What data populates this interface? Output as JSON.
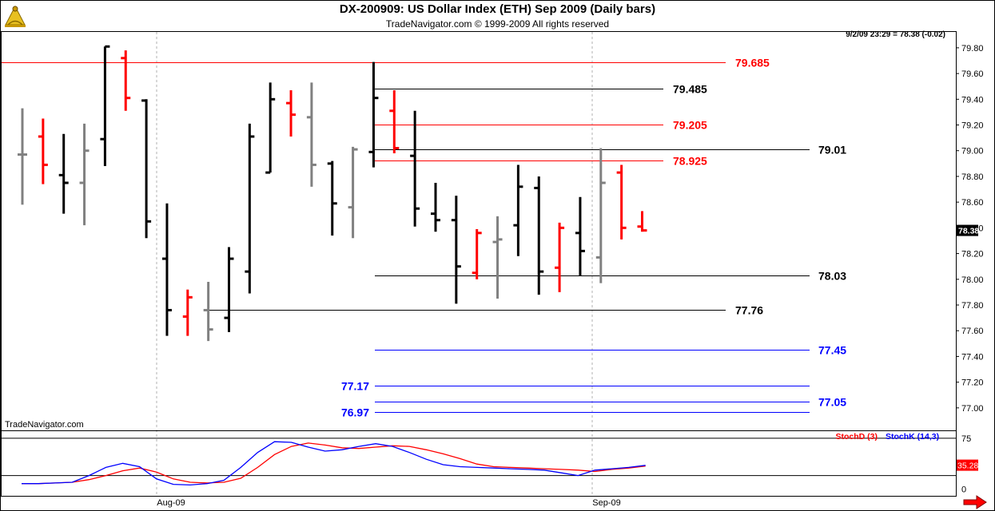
{
  "header": {
    "title": "DX-200909:  US Dollar Index (ETH) Sep 2009  (Daily bars)",
    "subtitle": "TradeNavigator.com © 1999-2009 All rights reserved",
    "quote": "9/2/09 23:29 = 78.38 (-0.02)",
    "watermark": "TradeNavigator.com",
    "logo_icon": "sextant-logo-icon",
    "nav_icon": "red-arrow-right-icon"
  },
  "colors": {
    "background": "#ffffff",
    "up_bar": "#000000",
    "down_bar": "#ff0000",
    "neutral_bar": "#808080",
    "level_red": "#ff0000",
    "level_black": "#000000",
    "level_blue": "#0000ff",
    "stoch_d": "#ff0000",
    "stoch_k": "#0000ff"
  },
  "chart_data": [
    {
      "type": "ohlc",
      "ylim": [
        76.85,
        79.88
      ],
      "y_ticks": [
        "79.80",
        "79.60",
        "79.40",
        "79.20",
        "79.00",
        "78.80",
        "78.60",
        "78.40",
        "78.20",
        "78.00",
        "77.80",
        "77.60",
        "77.40",
        "77.20",
        "77.00"
      ],
      "x_ticks": [
        "Aug-09",
        "Sep-09"
      ],
      "last_price_label": "78.38",
      "bars": [
        {
          "o": 78.97,
          "h": 79.33,
          "l": 78.58,
          "c": 78.97,
          "color": "gray"
        },
        {
          "o": 79.11,
          "h": 79.25,
          "l": 78.74,
          "c": 78.89,
          "color": "red"
        },
        {
          "o": 78.81,
          "h": 79.13,
          "l": 78.51,
          "c": 78.75,
          "color": "black"
        },
        {
          "o": 78.75,
          "h": 79.21,
          "l": 78.42,
          "c": 79.0,
          "color": "gray"
        },
        {
          "o": 79.09,
          "h": 79.81,
          "l": 78.88,
          "c": 79.81,
          "color": "black"
        },
        {
          "o": 79.72,
          "h": 79.78,
          "l": 79.31,
          "c": 79.41,
          "color": "red"
        },
        {
          "o": 79.39,
          "h": 79.4,
          "l": 78.32,
          "c": 78.45,
          "color": "black"
        },
        {
          "o": 78.16,
          "h": 78.59,
          "l": 77.56,
          "c": 77.76,
          "color": "black"
        },
        {
          "o": 77.71,
          "h": 77.92,
          "l": 77.56,
          "c": 77.86,
          "color": "red"
        },
        {
          "o": 77.76,
          "h": 77.98,
          "l": 77.52,
          "c": 77.61,
          "color": "gray"
        },
        {
          "o": 77.7,
          "h": 78.25,
          "l": 77.59,
          "c": 78.16,
          "color": "black"
        },
        {
          "o": 78.06,
          "h": 79.21,
          "l": 77.89,
          "c": 79.11,
          "color": "black"
        },
        {
          "o": 78.83,
          "h": 79.53,
          "l": 78.83,
          "c": 79.4,
          "color": "black"
        },
        {
          "o": 79.37,
          "h": 79.47,
          "l": 79.11,
          "c": 79.28,
          "color": "red"
        },
        {
          "o": 79.26,
          "h": 79.53,
          "l": 78.72,
          "c": 78.89,
          "color": "gray"
        },
        {
          "o": 78.9,
          "h": 78.92,
          "l": 78.34,
          "c": 78.59,
          "color": "black"
        },
        {
          "o": 78.56,
          "h": 79.03,
          "l": 78.32,
          "c": 79.01,
          "color": "gray"
        },
        {
          "o": 78.99,
          "h": 79.69,
          "l": 78.87,
          "c": 79.41,
          "color": "black"
        },
        {
          "o": 79.31,
          "h": 79.47,
          "l": 78.98,
          "c": 79.02,
          "color": "red"
        },
        {
          "o": 78.96,
          "h": 79.31,
          "l": 78.41,
          "c": 78.55,
          "color": "black"
        },
        {
          "o": 78.51,
          "h": 78.75,
          "l": 78.37,
          "c": 78.46,
          "color": "black"
        },
        {
          "o": 78.46,
          "h": 78.65,
          "l": 77.81,
          "c": 78.1,
          "color": "black"
        },
        {
          "o": 78.05,
          "h": 78.39,
          "l": 78.0,
          "c": 78.36,
          "color": "red"
        },
        {
          "o": 78.29,
          "h": 78.49,
          "l": 77.85,
          "c": 78.31,
          "color": "gray"
        },
        {
          "o": 78.42,
          "h": 78.89,
          "l": 78.18,
          "c": 78.72,
          "color": "black"
        },
        {
          "o": 78.71,
          "h": 78.8,
          "l": 77.88,
          "c": 78.06,
          "color": "black"
        },
        {
          "o": 78.09,
          "h": 78.44,
          "l": 77.9,
          "c": 78.4,
          "color": "red"
        },
        {
          "o": 78.36,
          "h": 78.64,
          "l": 78.03,
          "c": 78.22,
          "color": "black"
        },
        {
          "o": 78.17,
          "h": 79.02,
          "l": 77.97,
          "c": 78.75,
          "color": "gray"
        },
        {
          "o": 78.83,
          "h": 78.89,
          "l": 78.31,
          "c": 78.4,
          "color": "red"
        },
        {
          "o": 78.41,
          "h": 78.53,
          "l": 78.37,
          "c": 78.38,
          "color": "red"
        }
      ],
      "levels": [
        {
          "value": 79.685,
          "label": "79.685",
          "color": "red"
        },
        {
          "value": 79.485,
          "label": "79.485",
          "color": "black"
        },
        {
          "value": 79.205,
          "label": "79.205",
          "color": "red"
        },
        {
          "value": 79.01,
          "label": "79.01",
          "color": "black"
        },
        {
          "value": 78.925,
          "label": "78.925",
          "color": "red"
        },
        {
          "value": 78.03,
          "label": "78.03",
          "color": "black"
        },
        {
          "value": 77.76,
          "label": "77.76",
          "color": "black"
        },
        {
          "value": 77.45,
          "label": "77.45",
          "color": "blue"
        },
        {
          "value": 77.17,
          "label": "77.17",
          "color": "blue"
        },
        {
          "value": 77.05,
          "label": "77.05",
          "color": "blue"
        },
        {
          "value": 76.97,
          "label": "76.97",
          "color": "blue"
        }
      ]
    },
    {
      "type": "line",
      "ylim": [
        -10,
        82
      ],
      "y_ticks": [
        "75",
        "0"
      ],
      "last_value_label": "35.28",
      "series": [
        {
          "name": "StochD (3)",
          "color": "red",
          "values": [
            8,
            8,
            9,
            10,
            14,
            20,
            27,
            31,
            25,
            15,
            10,
            9,
            10,
            16,
            32,
            51,
            63,
            68,
            65,
            61,
            60,
            62,
            64,
            63,
            58,
            52,
            45,
            37,
            33,
            32,
            31,
            30,
            29,
            28,
            26,
            29,
            31,
            34
          ]
        },
        {
          "name": "StochK (14,3)",
          "color": "blue",
          "values": [
            8,
            8,
            9,
            10,
            20,
            32,
            38,
            33,
            15,
            7,
            6,
            8,
            13,
            32,
            54,
            70,
            69,
            62,
            56,
            58,
            63,
            67,
            63,
            54,
            44,
            36,
            33,
            32,
            31,
            30,
            29,
            28,
            24,
            20,
            28,
            30,
            32,
            35
          ]
        }
      ]
    }
  ]
}
